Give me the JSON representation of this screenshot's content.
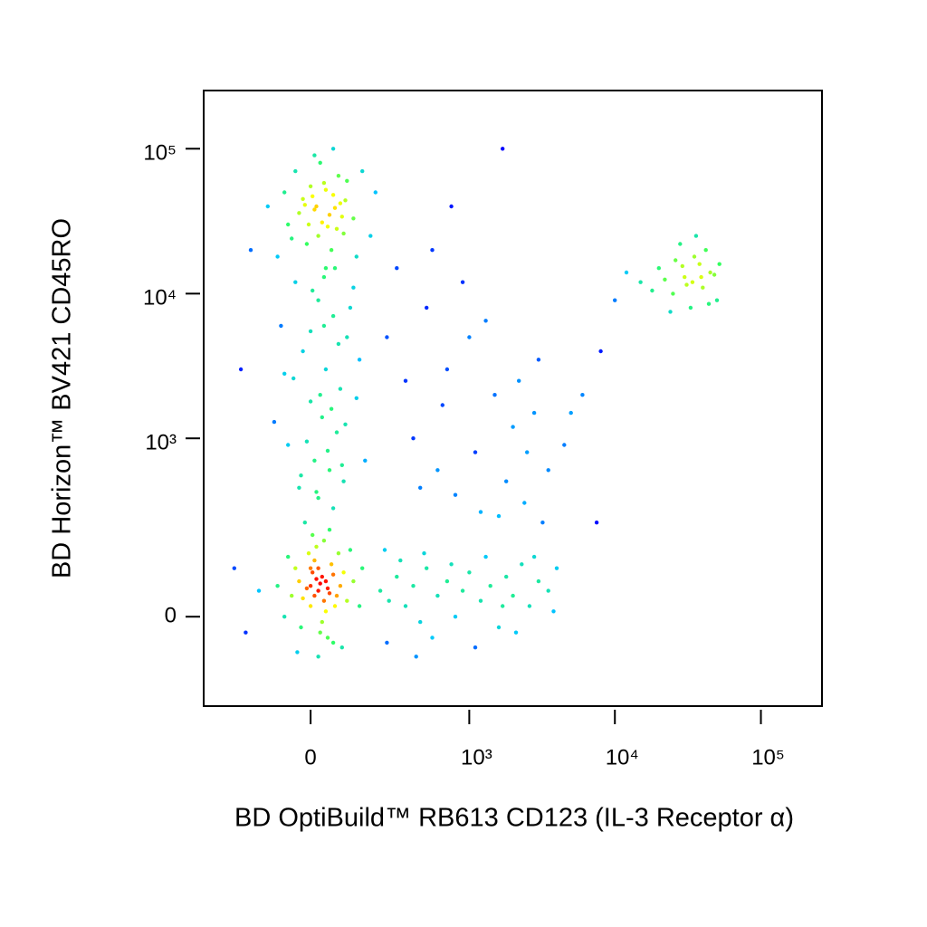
{
  "chart_data": {
    "type": "scatter",
    "xlabel": "BD OptiBuild™ RB613 CD123 (IL-3 Receptor α)",
    "ylabel": "BD Horizon™ BV421 CD45RO",
    "xscale": "biexponential",
    "yscale": "biexponential",
    "xlim": [
      -430,
      262000
    ],
    "ylim": [
      -230,
      252000
    ],
    "xticks": [
      0,
      {
        "value": 1000,
        "label": "10³"
      },
      {
        "value": 10000,
        "label": "10⁴"
      },
      {
        "value": 100000,
        "label": "10⁵"
      }
    ],
    "yticks": [
      0,
      {
        "value": 1000,
        "label": "10³"
      },
      {
        "value": 10000,
        "label": "10⁴"
      },
      {
        "value": 100000,
        "label": "10⁵"
      }
    ],
    "colormap": [
      "#0000ff",
      "#00c8ff",
      "#30ff60",
      "#ffff00",
      "#ff0000"
    ],
    "x": [
      -60,
      -20,
      10,
      40,
      70,
      100,
      -40,
      20,
      50,
      80,
      0,
      30,
      60,
      -10,
      90,
      120,
      -70,
      15,
      45,
      75,
      -30,
      5,
      35,
      65,
      95,
      -50,
      25,
      55,
      85,
      -15,
      150,
      200,
      -120,
      180,
      10,
      60,
      -90,
      130,
      40,
      -5,
      -40,
      20,
      60,
      100,
      -20,
      40,
      80,
      0,
      30,
      70,
      -60,
      10,
      50,
      90,
      -30,
      20,
      60,
      110,
      -80,
      140,
      5,
      35,
      75,
      -45,
      25,
      55,
      95,
      -10,
      45,
      85,
      -25,
      15,
      65,
      120,
      -70,
      130,
      160,
      -100,
      35,
      0,
      0,
      20,
      40,
      10,
      30,
      -10,
      50,
      25,
      5,
      35,
      15,
      45,
      -20,
      60,
      0,
      20,
      40,
      -30,
      70,
      10,
      30,
      55,
      -40,
      80,
      -5,
      25,
      65,
      -50,
      90,
      15,
      45,
      -25,
      100,
      5,
      35,
      -60,
      75,
      120,
      -70,
      50,
      140,
      -15,
      85,
      110,
      -35,
      20,
      60,
      150,
      -90,
      0,
      220,
      260,
      300,
      350,
      400,
      450,
      500,
      600,
      700,
      800,
      900,
      1000,
      1200,
      1400,
      1600,
      1800,
      2000,
      2300,
      2600,
      3000,
      3500,
      4000,
      250,
      320,
      480,
      550,
      750,
      1100,
      1300,
      1700,
      2100,
      2800,
      3800,
      240,
      420,
      300,
      500,
      700,
      1000,
      1500,
      2000,
      2500,
      3000,
      400,
      600,
      800,
      1200,
      1800,
      2200,
      2800,
      3500,
      4500,
      6000,
      8000,
      10000,
      900,
      1300,
      350,
      450,
      650,
      1100,
      1600,
      2400,
      3200,
      5000,
      7500,
      250,
      550,
      1700,
      750,
      15000,
      20000,
      25000,
      30000,
      35000,
      40000,
      45000,
      50000,
      28000,
      33000,
      38000,
      22000,
      42000,
      26000,
      31000,
      36000,
      48000,
      18000,
      24000,
      44000,
      39000,
      29000,
      34000,
      12000,
      52000,
      -150,
      -200,
      -250,
      -180,
      -220
    ],
    "y": [
      30000,
      45000,
      38000,
      52000,
      28000,
      60000,
      70000,
      25000,
      35000,
      42000,
      55000,
      31000,
      48000,
      22000,
      26000,
      33000,
      50000,
      40000,
      29000,
      65000,
      36000,
      47000,
      58000,
      39000,
      44000,
      24000,
      80000,
      20000,
      34000,
      41000,
      70000,
      50000,
      40000,
      25000,
      90000,
      100000,
      18000,
      18000,
      15000,
      30000,
      12000,
      9000,
      7000,
      5000,
      4000,
      3000,
      2200,
      1800,
      1400,
      1100,
      900,
      700,
      600,
      500,
      450,
      380,
      320,
      8000,
      6000,
      3500,
      10500,
      6000,
      4500,
      2600,
      2000,
      1600,
      1250,
      950,
      820,
      650,
      550,
      420,
      15000,
      11000,
      2800,
      1900,
      700,
      1300,
      13000,
      5500,
      60,
      50,
      70,
      40,
      80,
      55,
      45,
      65,
      90,
      30,
      75,
      55,
      35,
      85,
      20,
      100,
      10,
      70,
      40,
      120,
      -10,
      110,
      100,
      60,
      140,
      -30,
      20,
      40,
      90,
      160,
      -40,
      -20,
      30,
      200,
      180,
      130,
      140,
      70,
      0,
      220,
      20,
      250,
      -60,
      150,
      -70,
      -80,
      -50,
      100,
      60,
      100,
      50,
      30,
      80,
      20,
      60,
      -10,
      100,
      40,
      70,
      0,
      50,
      90,
      30,
      60,
      -20,
      80,
      40,
      110,
      20,
      70,
      50,
      100,
      -50,
      120,
      140,
      -40,
      110,
      -60,
      130,
      20,
      -30,
      130,
      10,
      150,
      -80,
      15000,
      8000,
      3000,
      5000,
      2000,
      1200,
      800,
      3500,
      1000,
      600,
      400,
      300,
      500,
      2500,
      1500,
      600,
      900,
      2000,
      4000,
      9000,
      12000,
      6500,
      2500,
      450,
      1700,
      800,
      280,
      350,
      250,
      1500,
      250,
      5000,
      20000,
      100000,
      40000,
      12000,
      15000,
      10000,
      13000,
      18000,
      11000,
      14000,
      9000,
      22000,
      8000,
      16000,
      12500,
      20000,
      17000,
      11500,
      25000,
      13500,
      10500,
      7500,
      8500,
      13000,
      15500,
      12000,
      14000,
      16000,
      50,
      -30,
      100,
      20000,
      3000
    ]
  }
}
